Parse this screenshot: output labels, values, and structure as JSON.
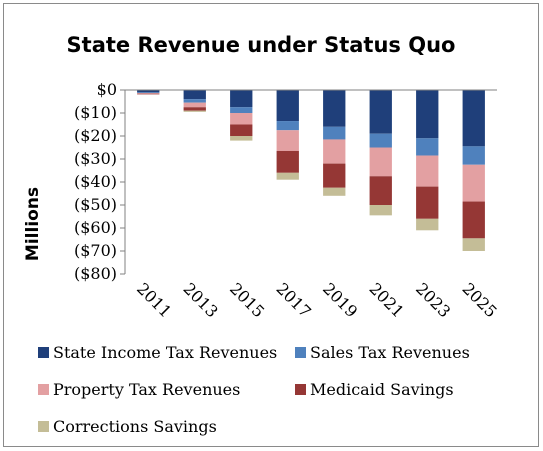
{
  "chart_data": {
    "type": "bar",
    "stacked": true,
    "title": "State Revenue under Status Quo",
    "ylabel": "Millions",
    "xlabel": "",
    "ylim": [
      -80,
      0
    ],
    "yticks": [
      0,
      -10,
      -20,
      -30,
      -40,
      -50,
      -60,
      -70,
      -80
    ],
    "ytick_labels": [
      "$0",
      "($10)",
      "($20)",
      "($30)",
      "($40)",
      "($50)",
      "($60)",
      "($70)",
      "($80)"
    ],
    "categories": [
      "2011",
      "2013",
      "2015",
      "2017",
      "2019",
      "2021",
      "2023",
      "2025"
    ],
    "legend_position": "bottom",
    "series": [
      {
        "name": "State Income Tax Revenues",
        "color": "#1f3f7a",
        "values": [
          -1,
          -4,
          -7.5,
          -13.5,
          -16,
          -19,
          -21,
          -24.5
        ]
      },
      {
        "name": "Sales Tax Revenues",
        "color": "#4f81bd",
        "values": [
          -0.3,
          -1.5,
          -2.5,
          -4,
          -5.5,
          -6,
          -7.5,
          -8
        ]
      },
      {
        "name": "Property Tax Revenues",
        "color": "#e3a0a2",
        "values": [
          -0.3,
          -2,
          -5,
          -9,
          -10.5,
          -12.5,
          -13.5,
          -16
        ]
      },
      {
        "name": "Medicaid Savings",
        "color": "#953735",
        "values": [
          -0.3,
          -1.5,
          -5,
          -9.5,
          -10.5,
          -12.5,
          -14,
          -16
        ]
      },
      {
        "name": "Corrections Savings",
        "color": "#c4bd97",
        "values": [
          0,
          -0.5,
          -2,
          -3,
          -3.5,
          -4.5,
          -5,
          -5.5
        ]
      }
    ]
  }
}
